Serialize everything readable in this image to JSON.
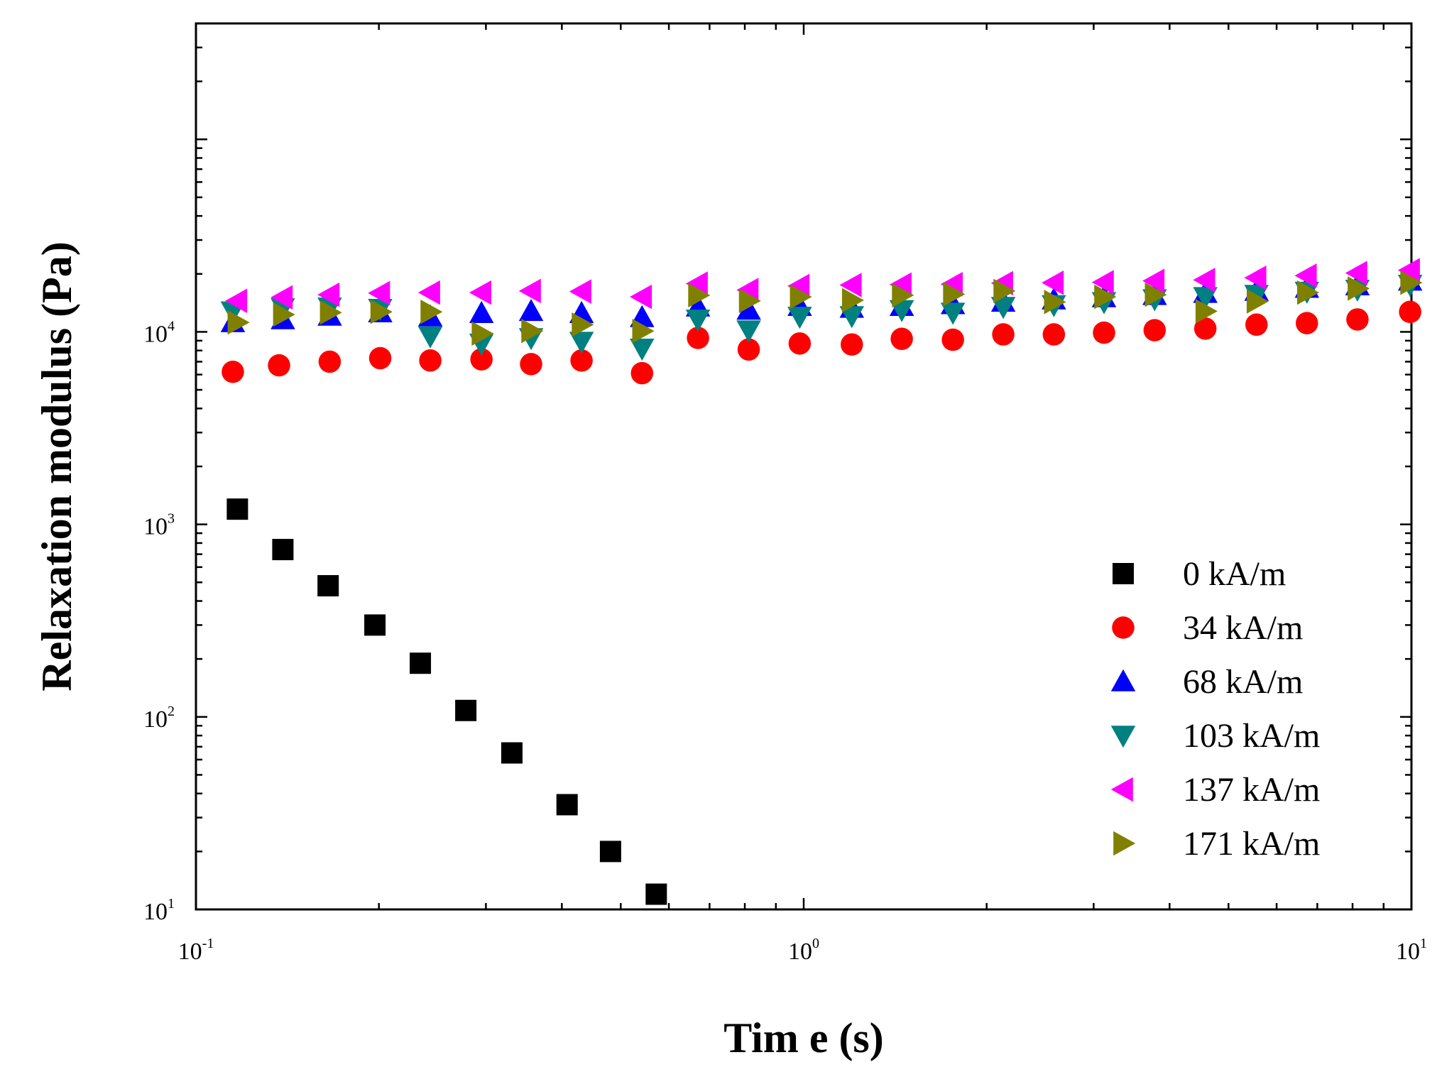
{
  "chart_data": {
    "type": "scatter",
    "title": "",
    "xlabel": "Tim e (s)",
    "ylabel": "Relaxation modulus (Pa)",
    "xscale": "log",
    "yscale": "log",
    "xlim": [
      0.1,
      10
    ],
    "ylim": [
      10,
      400000
    ],
    "legend_position": "bottom-right",
    "x_ticks": [
      {
        "value": 0.1,
        "base": "10",
        "exp": "-1"
      },
      {
        "value": 1,
        "base": "10",
        "exp": "0"
      },
      {
        "value": 10,
        "base": "10",
        "exp": "1"
      }
    ],
    "y_ticks": [
      {
        "value": 10,
        "base": "10",
        "exp": "1"
      },
      {
        "value": 100,
        "base": "10",
        "exp": "2"
      },
      {
        "value": 1000,
        "base": "10",
        "exp": "3"
      },
      {
        "value": 10000,
        "base": "10",
        "exp": "4"
      }
    ],
    "y_tick_label_base": "10",
    "series": [
      {
        "name": "0 kA/m",
        "marker": "square",
        "color": "#000000",
        "x": [
          0.117,
          0.139,
          0.165,
          0.197,
          0.234,
          0.278,
          0.331,
          0.408,
          0.481,
          0.572
        ],
        "y": [
          1200,
          740,
          480,
          300,
          190,
          108,
          65,
          35,
          20,
          12
        ]
      },
      {
        "name": "34 kA/m",
        "marker": "circle",
        "color": "#ff0000",
        "x": [
          0.115,
          0.137,
          0.166,
          0.201,
          0.243,
          0.295,
          0.356,
          0.431,
          0.542,
          0.67,
          0.812,
          0.985,
          1.2,
          1.45,
          1.76,
          2.13,
          2.58,
          3.12,
          3.78,
          4.58,
          5.56,
          6.73,
          8.15,
          9.95
        ],
        "y": [
          6200,
          6700,
          7000,
          7300,
          7100,
          7200,
          6800,
          7100,
          6100,
          9300,
          8100,
          8700,
          8600,
          9200,
          9100,
          9700,
          9700,
          9900,
          10200,
          10400,
          10900,
          11100,
          11600,
          12700
        ]
      },
      {
        "name": "68 kA/m",
        "marker": "triangle-up",
        "color": "#0000ff",
        "x": [
          0.115,
          0.139,
          0.166,
          0.201,
          0.243,
          0.295,
          0.356,
          0.431,
          0.542,
          0.67,
          0.812,
          0.985,
          1.2,
          1.45,
          1.76,
          2.13,
          2.58,
          3.12,
          3.78,
          4.58,
          5.56,
          6.73,
          8.15,
          9.95
        ],
        "y": [
          11200,
          11600,
          12100,
          12600,
          12000,
          12500,
          12800,
          12500,
          11900,
          13500,
          13000,
          13600,
          13300,
          13600,
          13900,
          14300,
          14700,
          15100,
          15500,
          15900,
          16300,
          16900,
          17400,
          18400
        ]
      },
      {
        "name": "103 kA/m",
        "marker": "triangle-down",
        "color": "#008080",
        "x": [
          0.115,
          0.139,
          0.166,
          0.201,
          0.243,
          0.295,
          0.356,
          0.431,
          0.542,
          0.67,
          0.812,
          0.985,
          1.2,
          1.45,
          1.76,
          2.13,
          2.58,
          3.12,
          3.78,
          4.58,
          5.56,
          6.73,
          8.15,
          9.95
        ],
        "y": [
          12800,
          13300,
          13400,
          13200,
          9500,
          8700,
          9300,
          8900,
          8200,
          11600,
          10200,
          12000,
          12100,
          13000,
          12600,
          13500,
          13800,
          14300,
          14800,
          15200,
          15600,
          16200,
          16600,
          17600
        ]
      },
      {
        "name": "137 kA/m",
        "marker": "triangle-left",
        "color": "#ff00ff",
        "x": [
          0.117,
          0.139,
          0.166,
          0.201,
          0.243,
          0.295,
          0.356,
          0.431,
          0.542,
          0.67,
          0.812,
          0.985,
          1.2,
          1.45,
          1.76,
          2.13,
          2.58,
          3.12,
          3.78,
          4.58,
          5.56,
          6.73,
          8.15,
          9.95
        ],
        "y": [
          14500,
          15100,
          15600,
          15900,
          16000,
          16000,
          16300,
          16200,
          15200,
          17800,
          16500,
          17300,
          17500,
          17600,
          17700,
          17900,
          18000,
          18100,
          18400,
          18600,
          19100,
          19600,
          20200,
          20900
        ]
      },
      {
        "name": "171 kA/m",
        "marker": "triangle-right",
        "color": "#808000",
        "x": [
          0.117,
          0.139,
          0.166,
          0.201,
          0.243,
          0.295,
          0.356,
          0.431,
          0.542,
          0.67,
          0.812,
          0.985,
          1.2,
          1.45,
          1.76,
          2.13,
          2.58,
          3.12,
          3.78,
          4.58,
          5.56,
          6.73,
          8.15,
          9.95
        ],
        "y": [
          11200,
          12300,
          12600,
          12700,
          12700,
          9800,
          10100,
          10900,
          10100,
          15500,
          14500,
          15200,
          14600,
          15500,
          15700,
          16300,
          14300,
          15200,
          15600,
          12800,
          14400,
          16000,
          16800,
          18000
        ]
      }
    ]
  }
}
